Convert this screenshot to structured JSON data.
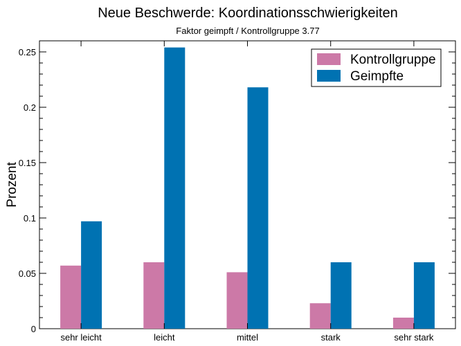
{
  "chart_data": {
    "type": "bar",
    "title": "Neue Beschwerde: Koordinationsschwierigkeiten",
    "subtitle": "Faktor geimpft / Kontrollgruppe 3.77",
    "xlabel": "",
    "ylabel": "Prozent",
    "categories": [
      "sehr leicht",
      "leicht",
      "mittel",
      "stark",
      "sehr stark"
    ],
    "series": [
      {
        "name": "Kontrollgruppe",
        "color": "#cc79a7",
        "values": [
          0.057,
          0.06,
          0.051,
          0.023,
          0.01
        ]
      },
      {
        "name": "Geimpfte",
        "color": "#0072b2",
        "values": [
          0.097,
          0.254,
          0.218,
          0.06,
          0.06
        ]
      }
    ],
    "ylim": [
      0,
      0.26
    ],
    "yticks": [
      0,
      0.05,
      0.1,
      0.15,
      0.2,
      0.25
    ],
    "ytick_labels": [
      "0",
      "0.05",
      "0.1",
      "0.15",
      "0.2",
      "0.25"
    ],
    "legend_position": "top-right",
    "grid": false
  }
}
